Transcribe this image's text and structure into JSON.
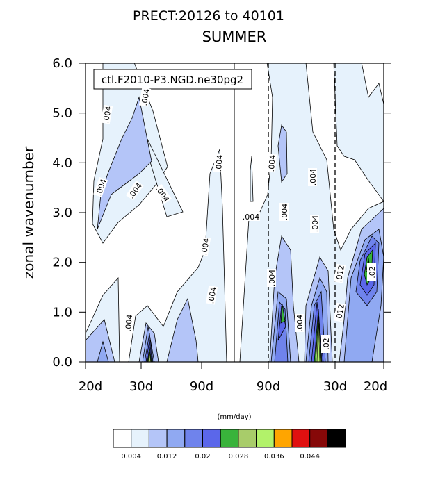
{
  "chart_data": {
    "type": "contour",
    "title": "PRECT:20126 to 40101",
    "subtitle": "SUMMER",
    "ylabel": "zonal wavenumber",
    "xlabel": "",
    "annotation": "ctl.F2010-P3.NGD.ne30pg2",
    "yticks": [
      "0.0",
      "1.0",
      "2.0",
      "3.0",
      "4.0",
      "5.0",
      "6.0"
    ],
    "xticks": [
      "20d",
      "30d",
      "90d",
      "90d",
      "30d",
      "20d"
    ],
    "ylim": [
      0,
      6
    ],
    "colorbar": {
      "title": "(mm/day)",
      "colors": [
        "#ffffff",
        "#e6f2fc",
        "#b4c5f8",
        "#90a9f2",
        "#6f83ec",
        "#5b67ea",
        "#39b33b",
        "#a8cc6a",
        "#b2f26a",
        "#ffa500",
        "#e01010",
        "#860808",
        "#000000"
      ],
      "labels": [
        "0.004",
        "0.012",
        "0.02",
        "0.028",
        "0.036",
        "0.044"
      ]
    },
    "contour_labels": [
      ".004",
      ".004",
      ".004",
      ".004",
      ".004",
      ".004",
      ".004",
      ".004",
      ".004",
      ".004",
      ".004",
      ".004",
      ".004",
      ".004",
      ".004",
      ".004",
      ".012",
      ".012",
      ".02",
      ".02"
    ],
    "dashed_lines_at_period": [
      "90d",
      "30d"
    ]
  }
}
